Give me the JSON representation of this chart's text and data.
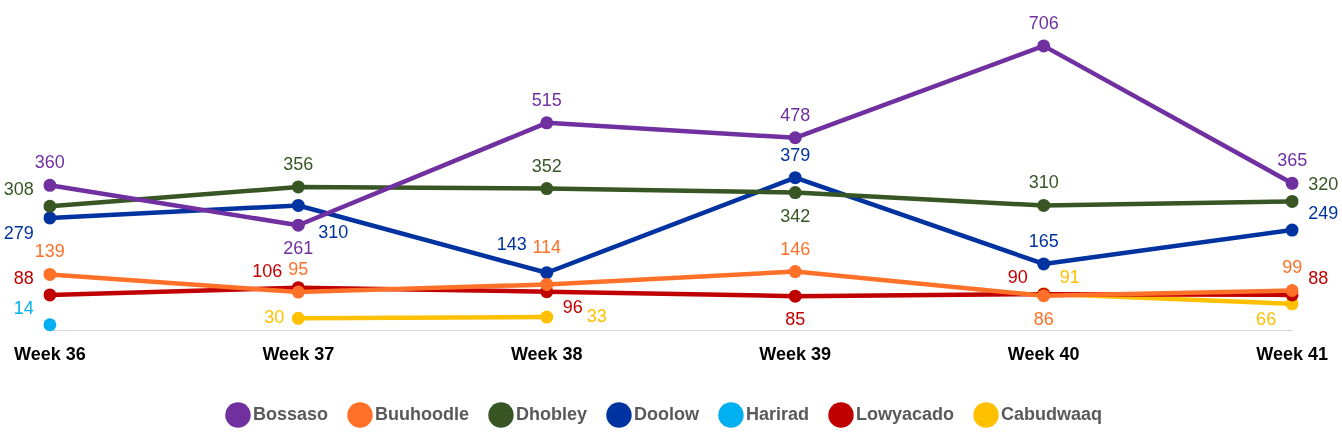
{
  "chart_data": {
    "type": "line",
    "categories": [
      "Week 36",
      "Week 37",
      "Week 38",
      "Week 39",
      "Week 40",
      "Week 41"
    ],
    "series": [
      {
        "name": "Bossaso",
        "color": "#7030a0",
        "values": [
          360,
          261,
          515,
          478,
          706,
          365
        ]
      },
      {
        "name": "Buuhoodle",
        "color": "#ff7029",
        "values": [
          139,
          95,
          114,
          146,
          86,
          99
        ]
      },
      {
        "name": "Dhobley",
        "color": "#375623",
        "values": [
          308,
          356,
          352,
          342,
          310,
          320
        ]
      },
      {
        "name": "Doolow",
        "color": "#0033a0",
        "values": [
          279,
          310,
          143,
          379,
          165,
          249
        ]
      },
      {
        "name": "Harirad",
        "color": "#00b0f0",
        "values": [
          14,
          null,
          null,
          null,
          null,
          null
        ]
      },
      {
        "name": "Lowyacado",
        "color": "#c00000",
        "values": [
          88,
          106,
          96,
          85,
          90,
          88
        ]
      },
      {
        "name": "Cabudwaaq",
        "color": "#ffc000",
        "values": [
          null,
          30,
          33,
          null,
          91,
          66
        ]
      }
    ],
    "tick_labels": "x",
    "grid": false,
    "legend": "bottom",
    "marker": "circle",
    "line_style": "solid",
    "data_labels": true
  }
}
